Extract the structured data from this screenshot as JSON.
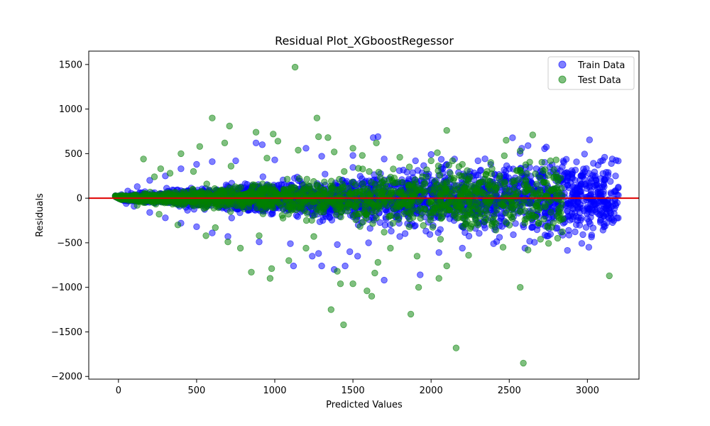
{
  "chart_data": {
    "type": "scatter",
    "title": "Residual Plot_XGboostRegessor",
    "xlabel": "Predicted Values",
    "ylabel": "Residuals",
    "xlim": [
      -190,
      3330
    ],
    "ylim": [
      -2030,
      1650
    ],
    "xticks": [
      0,
      500,
      1000,
      1500,
      2000,
      2500,
      3000
    ],
    "yticks": [
      -2000,
      -1500,
      -1000,
      -500,
      0,
      500,
      1000,
      1500
    ],
    "grid": false,
    "legend_position": "top-right",
    "zero_line": {
      "y": 0,
      "color": "#e00000"
    },
    "series": [
      {
        "name": "Train Data",
        "color": "#0000ff",
        "points": [
          [
            1660,
            690
          ],
          [
            1630,
            680
          ],
          [
            2580,
            560
          ],
          [
            3110,
            460
          ],
          [
            2600,
            -560
          ],
          [
            3000,
            -100
          ],
          [
            2830,
            -380
          ],
          [
            1700,
            -920
          ],
          [
            1530,
            -650
          ],
          [
            1280,
            -620
          ],
          [
            1480,
            -600
          ],
          [
            1240,
            -650
          ],
          [
            1380,
            -800
          ],
          [
            1930,
            -860
          ],
          [
            1450,
            -760
          ],
          [
            1300,
            -760
          ],
          [
            1120,
            -760
          ],
          [
            2050,
            -610
          ],
          [
            2200,
            -560
          ],
          [
            2400,
            -510
          ],
          [
            2620,
            590
          ],
          [
            2700,
            300
          ],
          [
            2900,
            310
          ],
          [
            3180,
            250
          ],
          [
            3150,
            60
          ],
          [
            880,
            620
          ],
          [
            920,
            600
          ],
          [
            1200,
            560
          ],
          [
            2000,
            490
          ],
          [
            2150,
            440
          ],
          [
            2300,
            420
          ],
          [
            2500,
            330
          ],
          [
            2760,
            350
          ],
          [
            3050,
            250
          ],
          [
            3120,
            290
          ],
          [
            2800,
            -340
          ],
          [
            2650,
            -270
          ],
          [
            2480,
            -290
          ],
          [
            2350,
            -240
          ],
          [
            2200,
            -320
          ],
          [
            1800,
            -430
          ],
          [
            1600,
            -500
          ],
          [
            1400,
            -520
          ],
          [
            1100,
            -510
          ],
          [
            900,
            -490
          ],
          [
            700,
            -430
          ],
          [
            600,
            -390
          ],
          [
            500,
            -320
          ],
          [
            400,
            -280
          ],
          [
            300,
            -220
          ],
          [
            200,
            -160
          ],
          [
            100,
            -90
          ],
          [
            50,
            -60
          ],
          [
            20,
            40
          ],
          [
            60,
            80
          ],
          [
            120,
            130
          ],
          [
            200,
            200
          ],
          [
            300,
            250
          ],
          [
            400,
            330
          ],
          [
            500,
            380
          ],
          [
            600,
            410
          ],
          [
            750,
            420
          ],
          [
            1000,
            430
          ],
          [
            1300,
            470
          ],
          [
            1500,
            480
          ],
          [
            1700,
            440
          ],
          [
            1900,
            420
          ],
          [
            2100,
            380
          ],
          [
            2250,
            300
          ],
          [
            2420,
            230
          ]
        ]
      },
      {
        "name": "Test Data",
        "color": "#008000",
        "points": [
          [
            1130,
            1470
          ],
          [
            600,
            900
          ],
          [
            1270,
            900
          ],
          [
            710,
            810
          ],
          [
            2100,
            760
          ],
          [
            2650,
            710
          ],
          [
            1280,
            690
          ],
          [
            1340,
            680
          ],
          [
            880,
            740
          ],
          [
            990,
            720
          ],
          [
            2480,
            650
          ],
          [
            160,
            440
          ],
          [
            270,
            330
          ],
          [
            400,
            500
          ],
          [
            520,
            580
          ],
          [
            680,
            620
          ],
          [
            1020,
            640
          ],
          [
            1500,
            560
          ],
          [
            1650,
            620
          ],
          [
            2040,
            510
          ],
          [
            2570,
            530
          ],
          [
            2800,
            430
          ],
          [
            850,
            -830
          ],
          [
            980,
            -790
          ],
          [
            970,
            -900
          ],
          [
            1360,
            -1250
          ],
          [
            1440,
            -1420
          ],
          [
            1870,
            -1300
          ],
          [
            1920,
            -1000
          ],
          [
            2160,
            -1680
          ],
          [
            2590,
            -1850
          ],
          [
            2570,
            -1000
          ],
          [
            3140,
            -870
          ],
          [
            1420,
            -960
          ],
          [
            1500,
            -960
          ],
          [
            1620,
            -1100
          ],
          [
            1590,
            -1040
          ],
          [
            1660,
            -720
          ],
          [
            1640,
            -840
          ],
          [
            1090,
            -700
          ],
          [
            2100,
            -760
          ],
          [
            1910,
            -650
          ],
          [
            2620,
            -580
          ],
          [
            2700,
            -460
          ],
          [
            2050,
            -900
          ],
          [
            1200,
            -560
          ],
          [
            700,
            -490
          ],
          [
            560,
            -420
          ],
          [
            780,
            -560
          ],
          [
            1400,
            -820
          ],
          [
            1740,
            -560
          ],
          [
            2240,
            -640
          ],
          [
            2460,
            -550
          ],
          [
            2060,
            -460
          ],
          [
            1860,
            -320
          ],
          [
            230,
            240
          ],
          [
            330,
            280
          ],
          [
            480,
            300
          ],
          [
            720,
            360
          ],
          [
            950,
            450
          ],
          [
            1150,
            540
          ],
          [
            1380,
            520
          ],
          [
            1560,
            480
          ],
          [
            1800,
            460
          ],
          [
            2000,
            420
          ],
          [
            2200,
            380
          ],
          [
            2390,
            330
          ],
          [
            2560,
            210
          ],
          [
            2720,
            180
          ],
          [
            120,
            -80
          ],
          [
            260,
            -180
          ],
          [
            380,
            -300
          ],
          [
            620,
            -330
          ],
          [
            900,
            -420
          ],
          [
            1250,
            -430
          ],
          [
            1700,
            -380
          ],
          [
            2300,
            -300
          ],
          [
            2600,
            -240
          ]
        ]
      }
    ],
    "cloud": {
      "train": {
        "x_min": -20,
        "x_max": 3200,
        "spread_base": 20,
        "spread_slope": 0.12,
        "spread_cap": 360,
        "count": 3400
      },
      "test": {
        "x_min": -20,
        "x_max": 2850,
        "spread_base": 20,
        "spread_slope": 0.12,
        "spread_cap": 330,
        "count": 1600
      }
    }
  }
}
